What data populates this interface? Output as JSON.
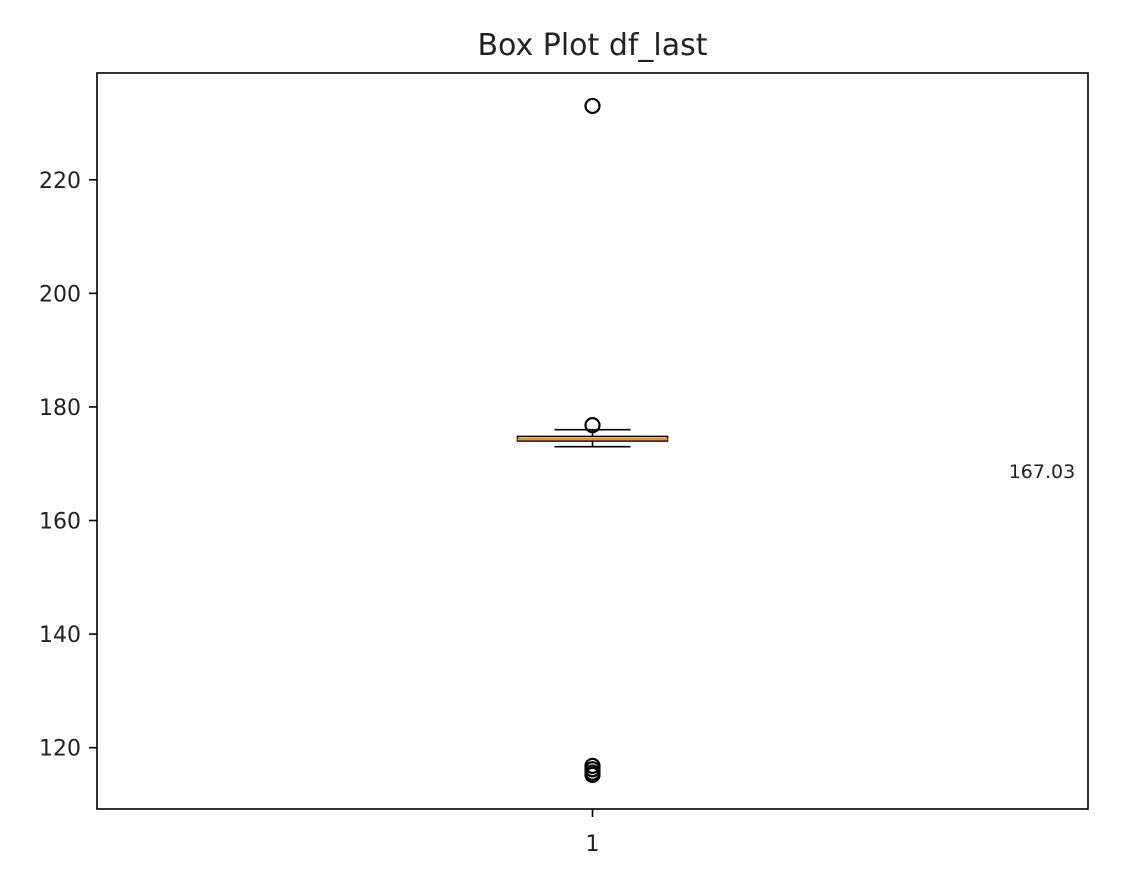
{
  "chart_data": {
    "type": "box",
    "title": "Box Plot df_last",
    "xlabel": "",
    "ylabel": "",
    "categories": [
      "1"
    ],
    "ylim": [
      109.2,
      238.8
    ],
    "yticks": [
      120,
      140,
      160,
      180,
      200,
      220
    ],
    "grid": false,
    "boxes": [
      {
        "category": "1",
        "whisker_low": 173.0,
        "q1": 174.0,
        "median": 174.3,
        "q3": 174.8,
        "whisker_high": 176.0,
        "outliers": [
          233.0,
          176.8,
          116.8,
          116.2,
          115.6,
          115.2
        ]
      }
    ],
    "annotations": [
      {
        "text": "167.03",
        "x": 1.42,
        "y": 167.5
      }
    ],
    "colors": {
      "median": "#f28e2b",
      "box": "#000000",
      "axes": "#000000",
      "text": "#222222"
    }
  }
}
